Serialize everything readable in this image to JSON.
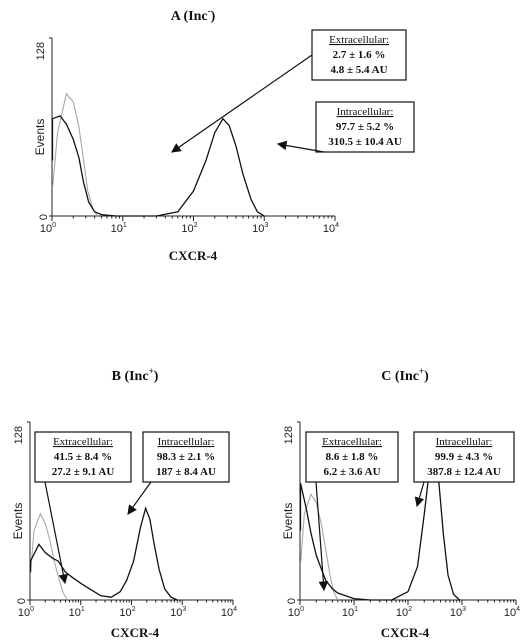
{
  "chart_data": [
    {
      "type": "histogram",
      "panel_label": "A (Inc",
      "panel_sup": "-",
      "panel_suffix": ")",
      "xlabel": "CXCR-4",
      "ylabel": "Events",
      "xscale": "log",
      "xlim": [
        1,
        10000
      ],
      "ylim": [
        0,
        128
      ],
      "yticks": [
        "0",
        "128"
      ],
      "series": [
        {
          "name": "",
          "color": "#a8a8a8",
          "x": [
            0.7,
            1.2,
            1.6,
            2.0,
            2.4,
            2.8,
            3.2,
            3.8,
            4.4
          ],
          "y": [
            20,
            60,
            88,
            82,
            64,
            40,
            18,
            5,
            0
          ]
        },
        {
          "name": "",
          "color": "#111111",
          "x": [
            0.7,
            1.0,
            1.3,
            1.6,
            2.0,
            2.4,
            2.8,
            3.3,
            4.0,
            5,
            8,
            30,
            60,
            100,
            150,
            200,
            260,
            320,
            400,
            500,
            650,
            800,
            1000
          ],
          "y": [
            40,
            70,
            72,
            66,
            55,
            42,
            24,
            10,
            3,
            1,
            0,
            0,
            3,
            18,
            40,
            60,
            70,
            65,
            50,
            30,
            12,
            3,
            0
          ]
        }
      ],
      "annotations": [
        {
          "head": "Extracellular:",
          "lines": [
            "2.7 ± 1.6 %",
            "4.8 ± 5.4 AU"
          ]
        },
        {
          "head": "Intracellular:",
          "lines": [
            "97.7 ± 5.2 %",
            "310.5 ± 10.4 AU"
          ]
        }
      ]
    },
    {
      "type": "histogram",
      "panel_label": "B (Inc",
      "panel_sup": "+",
      "panel_suffix": ")",
      "xlabel": "CXCR-4",
      "ylabel": "Events",
      "xscale": "log",
      "xlim": [
        1,
        10000
      ],
      "ylim": [
        0,
        128
      ],
      "yticks": [
        "0",
        "128"
      ],
      "series": [
        {
          "name": "",
          "color": "#a8a8a8",
          "x": [
            0.8,
            1.2,
            1.6,
            2.0,
            2.5,
            3.0,
            3.8,
            4.5,
            5.5
          ],
          "y": [
            18,
            50,
            62,
            55,
            42,
            28,
            14,
            5,
            0
          ]
        },
        {
          "name": "",
          "color": "#111111",
          "x": [
            0.8,
            1.0,
            1.5,
            2.0,
            2.8,
            3.6,
            5,
            7,
            10,
            15,
            25,
            40,
            60,
            80,
            110,
            150,
            190,
            230,
            280,
            350,
            450,
            600,
            800
          ],
          "y": [
            20,
            28,
            40,
            34,
            30,
            28,
            20,
            16,
            12,
            8,
            3,
            2,
            6,
            14,
            28,
            52,
            66,
            58,
            40,
            22,
            8,
            2,
            0
          ]
        }
      ],
      "annotations": [
        {
          "head": "Extracellular:",
          "lines": [
            "41.5 ± 8.4 %",
            "27.2 ± 9.1 AU"
          ]
        },
        {
          "head": "Intracellular:",
          "lines": [
            "98.3 ± 2.1 %",
            "187 ± 8.4 AU"
          ]
        }
      ]
    },
    {
      "type": "histogram",
      "panel_label": "C (Inc",
      "panel_sup": "+",
      "panel_suffix": ")",
      "xlabel": "CXCR-4",
      "ylabel": "Events",
      "xscale": "log",
      "xlim": [
        1,
        10000
      ],
      "ylim": [
        0,
        128
      ],
      "yticks": [
        "0",
        "128"
      ],
      "series": [
        {
          "name": "",
          "color": "#a8a8a8",
          "x": [
            0.8,
            1.2,
            1.6,
            2.0,
            2.5,
            3.0,
            3.6,
            4.2,
            5.0
          ],
          "y": [
            25,
            62,
            76,
            70,
            54,
            36,
            18,
            6,
            0
          ]
        },
        {
          "name": "",
          "color": "#111111",
          "x": [
            0.8,
            1.0,
            1.3,
            1.6,
            2.0,
            2.5,
            3.0,
            4.0,
            5,
            7,
            10,
            20,
            50,
            100,
            150,
            200,
            250,
            300,
            370,
            450,
            550,
            700,
            900
          ],
          "y": [
            50,
            84,
            66,
            48,
            32,
            22,
            14,
            8,
            5,
            3,
            1,
            0,
            0,
            6,
            24,
            62,
            94,
            104,
            86,
            48,
            18,
            4,
            0
          ]
        }
      ],
      "annotations": [
        {
          "head": "Extracellular:",
          "lines": [
            "8.6 ± 1.8 %",
            "6.2 ± 3.6 AU"
          ]
        },
        {
          "head": "Intracellular:",
          "lines": [
            "99.9 ± 4.3 %",
            "387.8 ± 12.4 AU"
          ]
        }
      ]
    }
  ]
}
